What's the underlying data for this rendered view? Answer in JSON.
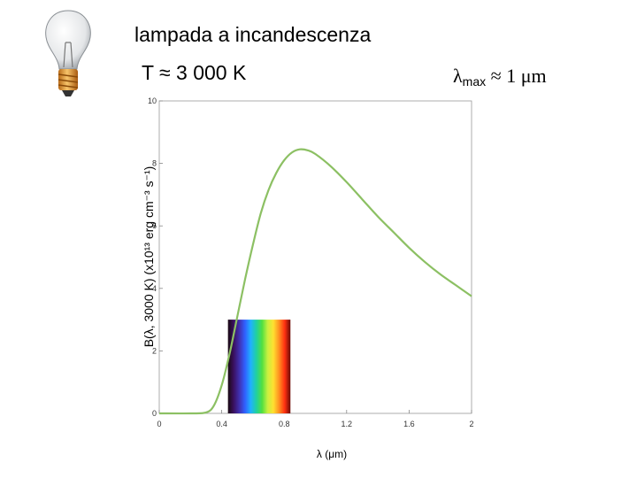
{
  "header": {
    "title": "lampada a incandescenza",
    "temperature": "T ≈ 3 000 K",
    "lambda_max_symbol": "λ",
    "lambda_max_sub": "max",
    "lambda_max_value": " ≈ 1 μm"
  },
  "icons": {
    "bulb": "light-bulb-icon"
  },
  "colors": {
    "curve": "#8cc063",
    "spectrum_stops": [
      "#1a0a12",
      "#3a1060",
      "#4030b0",
      "#3060ff",
      "#20b0ff",
      "#20d0a0",
      "#50e040",
      "#c8f040",
      "#ffe030",
      "#ff9020",
      "#ff3010",
      "#6a0a05"
    ]
  },
  "chart_data": {
    "type": "line",
    "xlabel": "λ (μm)",
    "ylabel": "B(λ, 3000 K) (x10¹³ erg cm⁻³ s⁻¹)",
    "xlim": [
      0,
      2
    ],
    "ylim": [
      0,
      10
    ],
    "x_ticks": [
      "0",
      "0.4",
      "0.8",
      "1.2",
      "1.6",
      "2"
    ],
    "y_ticks": [
      "0",
      "2",
      "4",
      "6",
      "8",
      "10"
    ],
    "series": [
      {
        "x": [
          0,
          0.2,
          0.3,
          0.35,
          0.4,
          0.45,
          0.5,
          0.55,
          0.6,
          0.65,
          0.7,
          0.75,
          0.8,
          0.85,
          0.9,
          0.95,
          1.0,
          1.1,
          1.2,
          1.3,
          1.4,
          1.5,
          1.6,
          1.7,
          1.8,
          1.9,
          2.0
        ],
        "y": [
          0,
          0,
          0.03,
          0.25,
          0.9,
          1.9,
          3.1,
          4.3,
          5.4,
          6.4,
          7.15,
          7.7,
          8.1,
          8.35,
          8.45,
          8.42,
          8.3,
          7.9,
          7.4,
          6.85,
          6.3,
          5.8,
          5.3,
          4.85,
          4.45,
          4.1,
          3.75
        ]
      }
    ],
    "spectrum_band_x": [
      0.44,
      0.84
    ],
    "spectrum_band_y": [
      0,
      3
    ]
  }
}
